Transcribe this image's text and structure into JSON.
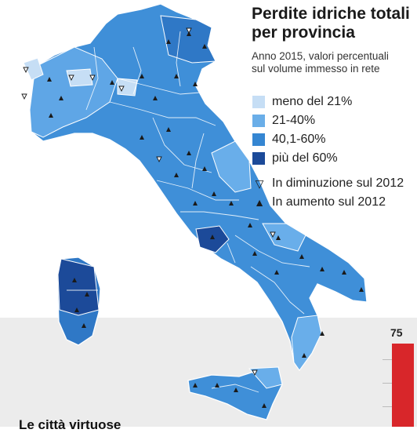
{
  "title_line1": "Perdite idriche totali",
  "title_line2": "per provincia",
  "subtitle_line1": "Anno 2015, valori percentuali",
  "subtitle_line2": "sul volume immesso in rete",
  "legend": {
    "classes": [
      {
        "label": "meno del 21%",
        "color": "#c6def5"
      },
      {
        "label": "21-40%",
        "color": "#6aaee8"
      },
      {
        "label": "40,1-60%",
        "color": "#3586d2"
      },
      {
        "label": "più del 60%",
        "color": "#1c4a99"
      }
    ],
    "symbols": [
      {
        "label": "In diminuzione sul 2012",
        "icon": "triangle-down-outline"
      },
      {
        "label": "In aumento sul 2012",
        "icon": "triangle-up-filled"
      }
    ]
  },
  "chart_value": "75",
  "bottom_caption": "Le città virtuose"
}
